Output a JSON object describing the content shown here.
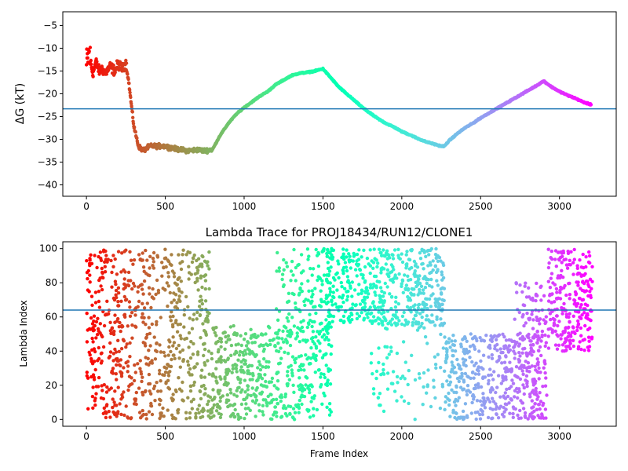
{
  "chart_data": [
    {
      "type": "scatter",
      "title": "",
      "xlabel": "",
      "ylabel": "ΔG (kT)",
      "xlim": [
        -150,
        3360
      ],
      "ylim": [
        -42.5,
        -2
      ],
      "xticks": [
        0,
        500,
        1000,
        1500,
        2000,
        2500,
        3000
      ],
      "yticks": [
        -5,
        -10,
        -15,
        -20,
        -25,
        -30,
        -35,
        -40
      ],
      "hline": -23.3,
      "color_map": "rainbow (red at frame 0 to violet at frame 3200)",
      "series": [
        {
          "x": [
            0,
            15,
            40,
            60,
            80,
            100,
            120,
            150,
            180,
            200,
            230,
            250,
            270,
            300,
            330,
            360,
            400,
            450,
            500,
            550,
            600,
            650,
            700,
            750,
            800,
            850,
            900,
            950,
            1000,
            1050,
            1100,
            1150,
            1200,
            1250,
            1300,
            1350,
            1400,
            1450,
            1500,
            1550,
            1600,
            1650,
            1700,
            1750,
            1800,
            1850,
            1900,
            1950,
            2000,
            2050,
            2100,
            2150,
            2200,
            2250,
            2270,
            2300,
            2350,
            2400,
            2450,
            2500,
            2550,
            2600,
            2650,
            2700,
            2750,
            2800,
            2850,
            2900,
            2950,
            3000,
            3050,
            3100,
            3150,
            3200
          ],
          "y": [
            -14,
            -11,
            -15.5,
            -13,
            -15,
            -14.5,
            -15.5,
            -14,
            -15,
            -13.5,
            -14.5,
            -13,
            -18,
            -27,
            -31.5,
            -32.5,
            -31.5,
            -31.5,
            -31.5,
            -32,
            -32.3,
            -32.5,
            -32.3,
            -32.5,
            -32.2,
            -29,
            -26.5,
            -24.5,
            -23,
            -21.8,
            -20.5,
            -19.5,
            -18,
            -17,
            -16,
            -15.5,
            -15.3,
            -15,
            -14.5,
            -16.5,
            -18.5,
            -20,
            -21.5,
            -23,
            -24.3,
            -25.5,
            -26.5,
            -27.3,
            -28.3,
            -29,
            -29.8,
            -30.5,
            -31,
            -31.5,
            -31.5,
            -30.3,
            -28.8,
            -27.5,
            -26.5,
            -25.3,
            -24.3,
            -23.3,
            -22.3,
            -21.3,
            -20.3,
            -19.3,
            -18.3,
            -17.2,
            -18.5,
            -19.5,
            -20.3,
            -21,
            -21.8,
            -22.4
          ]
        }
      ]
    },
    {
      "type": "scatter",
      "title": "Lambda Trace for PROJ18434/RUN12/CLONE1",
      "xlabel": "Frame Index",
      "ylabel": "Lambda Index",
      "xlim": [
        -150,
        3360
      ],
      "ylim": [
        -4,
        104
      ],
      "xticks": [
        0,
        500,
        1000,
        1500,
        2000,
        2500,
        3000
      ],
      "yticks": [
        0,
        20,
        40,
        60,
        80,
        100
      ],
      "hline": 64,
      "color_map": "rainbow (red at frame 0 to violet at frame 3200)",
      "series": [
        {
          "segments": [
            {
              "x_range": [
                0,
                780
              ],
              "y_range": [
                0,
                100
              ],
              "points": 700
            },
            {
              "x_range": [
                780,
                1560
              ],
              "y_range": [
                0,
                55
              ],
              "points": 520
            },
            {
              "x_range": [
                1200,
                1560
              ],
              "y_range": [
                45,
                100
              ],
              "points": 130
            },
            {
              "x_range": [
                1520,
                2270
              ],
              "y_range": [
                55,
                100
              ],
              "points": 520
            },
            {
              "x_range": [
                1800,
                2270
              ],
              "y_range": [
                0,
                60
              ],
              "points": 90
            },
            {
              "x_range": [
                2270,
                2920
              ],
              "y_range": [
                0,
                50
              ],
              "points": 480
            },
            {
              "x_range": [
                2700,
                2920
              ],
              "y_range": [
                40,
                80
              ],
              "points": 80
            },
            {
              "x_range": [
                2930,
                3210
              ],
              "y_range": [
                40,
                100
              ],
              "points": 260
            }
          ]
        }
      ]
    }
  ]
}
